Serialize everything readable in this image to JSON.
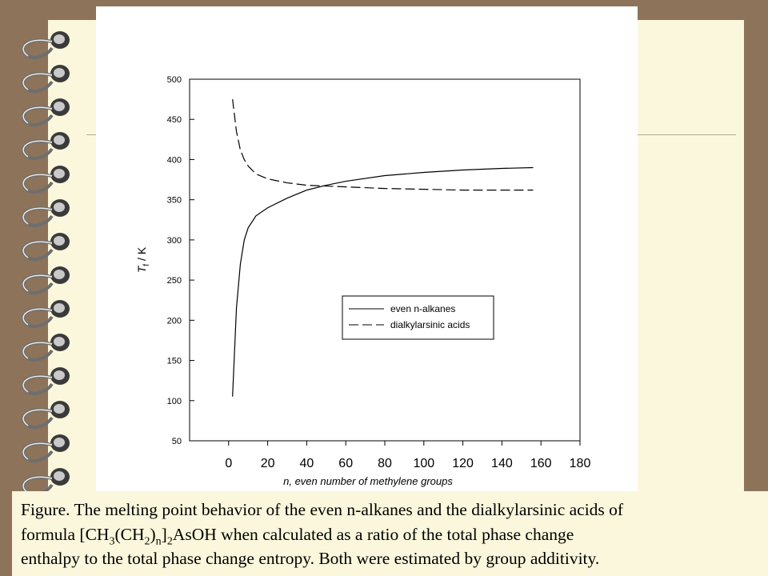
{
  "chart_data": {
    "type": "line",
    "xlabel": "n, even number of methylene groups",
    "ylabel": [
      "T",
      "f",
      " / K"
    ],
    "xlim": [
      -20,
      180
    ],
    "xticks": [
      0,
      20,
      40,
      60,
      80,
      100,
      120,
      140,
      160,
      180
    ],
    "ylim": [
      50,
      500
    ],
    "yticks": [
      50,
      100,
      150,
      200,
      250,
      300,
      350,
      400,
      450,
      500
    ],
    "legend": "center right",
    "series": [
      {
        "name": "even n-alkanes",
        "color": "#000000",
        "style": "solid",
        "x": [
          2,
          4,
          6,
          8,
          10,
          14,
          20,
          30,
          40,
          50,
          60,
          80,
          100,
          120,
          140,
          156
        ],
        "values": [
          105,
          215,
          270,
          300,
          315,
          330,
          340,
          352,
          362,
          368,
          373,
          380,
          384,
          387,
          389,
          390
        ]
      },
      {
        "name": "dialkylarsinic acids",
        "color": "#000000",
        "style": "dashed",
        "x": [
          2,
          4,
          6,
          8,
          10,
          14,
          20,
          30,
          40,
          60,
          80,
          100,
          120,
          156
        ],
        "values": [
          475,
          435,
          412,
          400,
          392,
          382,
          376,
          371,
          368,
          366,
          364,
          363,
          362,
          362
        ]
      }
    ]
  },
  "caption": [
    "Figure. The melting point behavior of the even n-alkanes and the dialkylarsinic acids of",
    "formula [CH",
    "3",
    "(CH",
    "2",
    ")",
    "n",
    "]",
    "2",
    "AsOH when calculated as a ratio of the total phase change",
    "enthalpy to the total phase change entropy. Both were estimated by group additivity."
  ]
}
